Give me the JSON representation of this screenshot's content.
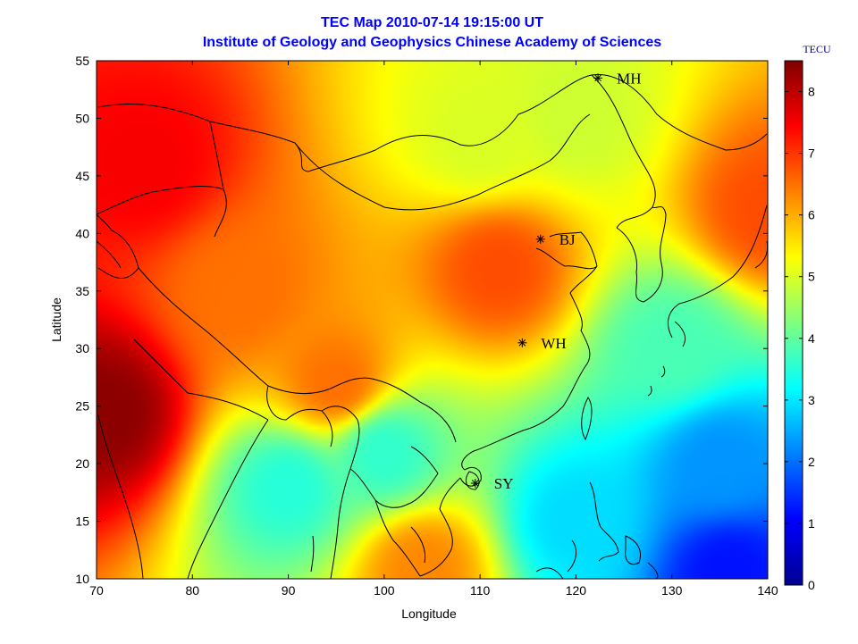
{
  "title_line1": "TEC Map 2010-07-14 19:15:00 UT",
  "title_line2": "Institute of Geology and Geophysics Chinese Academy of Sciences",
  "chart_data": {
    "type": "heatmap",
    "xlabel": "Longitude",
    "ylabel": "Latitude",
    "xlim": [
      70,
      140
    ],
    "ylim": [
      10,
      55
    ],
    "xticks": [
      70,
      80,
      90,
      100,
      110,
      120,
      130,
      140
    ],
    "yticks": [
      10,
      15,
      20,
      25,
      30,
      35,
      40,
      45,
      50,
      55
    ],
    "colorbar": {
      "unit": "TECU",
      "range": [
        0,
        8.5
      ],
      "ticks": [
        0,
        1,
        2,
        3,
        4,
        5,
        6,
        7,
        8
      ],
      "colormap": "jet"
    },
    "stations": [
      {
        "name": "MH",
        "lon": 122.3,
        "lat": 53.5
      },
      {
        "name": "BJ",
        "lon": 116.3,
        "lat": 39.5
      },
      {
        "name": "WH",
        "lon": 114.4,
        "lat": 30.5
      },
      {
        "name": "SY",
        "lon": 109.5,
        "lat": 18.3
      }
    ],
    "field_features": [
      {
        "lon": 71,
        "lat": 24.5,
        "tec": 8.4
      },
      {
        "lon": 75,
        "lat": 46,
        "tec": 7.5
      },
      {
        "lon": 112,
        "lat": 37,
        "tec": 6.8
      },
      {
        "lon": 95,
        "lat": 27,
        "tec": 6.5
      },
      {
        "lon": 85,
        "lat": 35,
        "tec": 6.5
      },
      {
        "lon": 140,
        "lat": 42,
        "tec": 6.8
      },
      {
        "lon": 104,
        "lat": 11,
        "tec": 6.3
      },
      {
        "lon": 136,
        "lat": 10.5,
        "tec": 1.2
      },
      {
        "lon": 120,
        "lat": 15,
        "tec": 2.9
      },
      {
        "lon": 135,
        "lat": 20,
        "tec": 2.3
      },
      {
        "lon": 110,
        "lat": 48,
        "tec": 5.0
      },
      {
        "lon": 120,
        "lat": 50,
        "tec": 4.9
      },
      {
        "lon": 130,
        "lat": 30,
        "tec": 3.8
      },
      {
        "lon": 90,
        "lat": 18,
        "tec": 3.5
      },
      {
        "lon": 100,
        "lat": 21,
        "tec": 3.6
      }
    ]
  }
}
